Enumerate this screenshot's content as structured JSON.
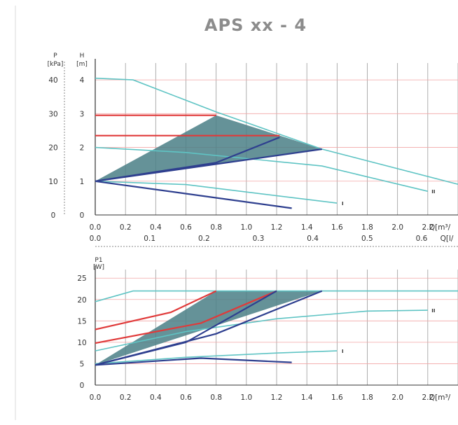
{
  "title": "APS xx - 4",
  "colors": {
    "cyan": "#5fc4c4",
    "red": "#e03a3a",
    "navy": "#2e3f8f",
    "area": "#4a7f86",
    "grid": "#9a9a9a",
    "pinkgrid": "#f2a6a6"
  },
  "chart_data": [
    {
      "type": "line",
      "id": "head",
      "ylabel_left": [
        "P",
        "[kPa]"
      ],
      "ylabel_right": [
        "H",
        "[m]"
      ],
      "xlabel": "Q[m³/h]",
      "xlabel_shown": "Q[m³/",
      "x_ticks": [
        "0.0",
        "0.2",
        "0.4",
        "0.6",
        "0.8",
        "1.0",
        "1.2",
        "1.4",
        "1.6",
        "1.8",
        "2.0",
        "2.2"
      ],
      "y_ticks_kpa": [
        "0",
        "10",
        "20",
        "30",
        "40"
      ],
      "y_ticks_m": [
        "0",
        "1",
        "2",
        "3",
        "4"
      ],
      "xlim": [
        0,
        2.4
      ],
      "ylim": [
        0,
        4.5
      ],
      "area": [
        [
          0,
          1.0
        ],
        [
          0.8,
          2.95
        ],
        [
          1.22,
          2.35
        ],
        [
          1.5,
          1.95
        ],
        [
          0,
          1.0
        ]
      ],
      "series": [
        {
          "name": "III",
          "color": "cyan",
          "points": [
            [
              0,
              4.05
            ],
            [
              0.25,
              4.0
            ],
            [
              0.8,
              3.05
            ],
            [
              1.5,
              1.95
            ],
            [
              2.45,
              0.85
            ]
          ]
        },
        {
          "name": "II",
          "color": "cyan",
          "points": [
            [
              0,
              2.0
            ],
            [
              0.6,
              1.85
            ],
            [
              1.5,
              1.45
            ],
            [
              2.2,
              0.7
            ]
          ]
        },
        {
          "name": "I",
          "color": "cyan",
          "points": [
            [
              0,
              1.0
            ],
            [
              0.6,
              0.9
            ],
            [
              1.6,
              0.35
            ]
          ]
        },
        {
          "name": "",
          "color": "red",
          "points": [
            [
              0,
              2.95
            ],
            [
              0.8,
              2.95
            ]
          ]
        },
        {
          "name": "",
          "color": "red",
          "points": [
            [
              0,
              2.35
            ],
            [
              1.22,
              2.35
            ]
          ]
        },
        {
          "name": "",
          "color": "navy",
          "points": [
            [
              0,
              1.0
            ],
            [
              0.8,
              1.55
            ],
            [
              1.22,
              2.3
            ]
          ]
        },
        {
          "name": "",
          "color": "navy",
          "points": [
            [
              0,
              1.0
            ],
            [
              1.5,
              1.95
            ]
          ]
        },
        {
          "name": "",
          "color": "navy",
          "points": [
            [
              0,
              1.0
            ],
            [
              1.3,
              0.2
            ]
          ]
        }
      ]
    },
    {
      "type": "line",
      "id": "power",
      "top_axis_label": "Q[l/s]",
      "top_axis_label_shown": "Q[l/",
      "top_ticks": [
        "0.0",
        "0.1",
        "0.2",
        "0.3",
        "0.4",
        "0.5",
        "0.6"
      ],
      "top_xlim": [
        0,
        0.667
      ],
      "ylabel": [
        "P1",
        "[W]"
      ],
      "xlabel": "Q[m³/h]",
      "xlabel_shown": "Q[m³/",
      "x_ticks": [
        "0.0",
        "0.2",
        "0.4",
        "0.6",
        "0.8",
        "1.0",
        "1.2",
        "1.4",
        "1.6",
        "1.8",
        "2.0",
        "2.2"
      ],
      "y_ticks": [
        "0",
        "5",
        "10",
        "15",
        "20",
        "25"
      ],
      "xlim": [
        0,
        2.4
      ],
      "ylim": [
        0,
        27
      ],
      "area": [
        [
          0,
          4.7
        ],
        [
          0.8,
          22.0
        ],
        [
          1.5,
          22.0
        ],
        [
          0,
          4.7
        ]
      ],
      "series": [
        {
          "name": "III",
          "color": "cyan",
          "points": [
            [
              0,
              19.5
            ],
            [
              0.25,
              22.0
            ],
            [
              2.4,
              22.0
            ]
          ]
        },
        {
          "name": "II",
          "color": "cyan",
          "points": [
            [
              0,
              8.0
            ],
            [
              0.6,
              12.5
            ],
            [
              1.2,
              15.5
            ],
            [
              1.8,
              17.3
            ],
            [
              2.2,
              17.5
            ]
          ]
        },
        {
          "name": "I",
          "color": "cyan",
          "points": [
            [
              0,
              5.0
            ],
            [
              0.6,
              6.5
            ],
            [
              1.2,
              7.5
            ],
            [
              1.6,
              8.0
            ]
          ]
        },
        {
          "name": "",
          "color": "red",
          "points": [
            [
              0,
              13.0
            ],
            [
              0.5,
              17.0
            ],
            [
              0.8,
              22.0
            ]
          ]
        },
        {
          "name": "",
          "color": "red",
          "points": [
            [
              0,
              9.8
            ],
            [
              0.7,
              14.5
            ],
            [
              1.2,
              22.0
            ]
          ]
        },
        {
          "name": "",
          "color": "navy",
          "points": [
            [
              0,
              4.7
            ],
            [
              0.6,
              10.0
            ],
            [
              1.2,
              22.0
            ]
          ]
        },
        {
          "name": "",
          "color": "navy",
          "points": [
            [
              0,
              4.7
            ],
            [
              0.8,
              12.0
            ],
            [
              1.5,
              22.0
            ]
          ]
        },
        {
          "name": "",
          "color": "navy",
          "points": [
            [
              0,
              4.7
            ],
            [
              0.7,
              6.3
            ],
            [
              1.3,
              5.3
            ]
          ]
        }
      ]
    }
  ]
}
